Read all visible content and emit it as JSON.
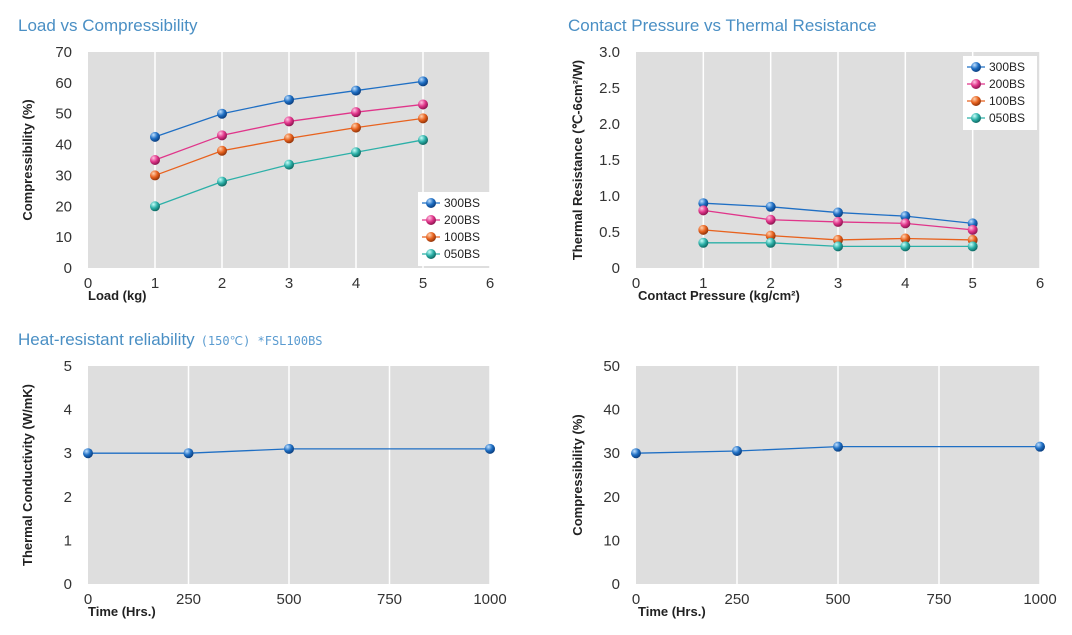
{
  "chart_data": [
    {
      "type": "line",
      "title": "Load vs Compressibility",
      "xlabel": "Load (kg)",
      "ylabel": "Compressibility (%)",
      "x": [
        1,
        2,
        3,
        4,
        5
      ],
      "xlim": [
        0,
        6
      ],
      "ylim": [
        0,
        70
      ],
      "xticks": [
        0,
        1,
        2,
        3,
        4,
        5,
        6
      ],
      "yticks": [
        0,
        10,
        20,
        30,
        40,
        50,
        60,
        70
      ],
      "grid": true,
      "legend": "bottom-right",
      "series": [
        {
          "name": "300BS",
          "color": "#1f6fc4",
          "values": [
            42.5,
            50,
            54.5,
            57.5,
            60.5
          ]
        },
        {
          "name": "200BS",
          "color": "#e0358a",
          "values": [
            35,
            43,
            47.5,
            50.5,
            53
          ]
        },
        {
          "name": "100BS",
          "color": "#e8621e",
          "values": [
            30,
            38,
            42,
            45.5,
            48.5
          ]
        },
        {
          "name": "050BS",
          "color": "#2cb0a8",
          "values": [
            20,
            28,
            33.5,
            37.5,
            41.5
          ]
        }
      ]
    },
    {
      "type": "line",
      "title": "Contact Pressure vs Thermal Resistance",
      "xlabel": "Contact Pressure (kg/cm²)",
      "ylabel": "Thermal Resistance (℃-6cm²/W)",
      "x": [
        1,
        2,
        3,
        4,
        5
      ],
      "xlim": [
        0,
        6
      ],
      "ylim": [
        0,
        3.0
      ],
      "xticks": [
        0,
        1,
        2,
        3,
        4,
        5,
        6
      ],
      "yticks": [
        0,
        0.5,
        1.0,
        1.5,
        2.0,
        2.5,
        3.0
      ],
      "ytick_labels": [
        "0",
        "0.5",
        "1.0",
        "1.5",
        "2.0",
        "2.5",
        "3.0"
      ],
      "grid": true,
      "legend": "top-right",
      "series": [
        {
          "name": "300BS",
          "color": "#1f6fc4",
          "values": [
            0.9,
            0.85,
            0.77,
            0.72,
            0.62
          ]
        },
        {
          "name": "200BS",
          "color": "#e0358a",
          "values": [
            0.8,
            0.67,
            0.64,
            0.62,
            0.53
          ]
        },
        {
          "name": "100BS",
          "color": "#e8621e",
          "values": [
            0.53,
            0.45,
            0.39,
            0.41,
            0.39
          ]
        },
        {
          "name": "050BS",
          "color": "#2cb0a8",
          "values": [
            0.35,
            0.35,
            0.3,
            0.3,
            0.3
          ]
        }
      ]
    },
    {
      "type": "line",
      "title": "Heat-resistant reliability",
      "subtitle": "(150℃) *FSL100BS",
      "xlabel": "Time (Hrs.)",
      "ylabel": "Thermal Conductivity (W/mK)",
      "x": [
        0,
        250,
        500,
        1000
      ],
      "xlim": [
        0,
        1000
      ],
      "ylim": [
        0,
        5
      ],
      "xticks": [
        0,
        250,
        500,
        750,
        1000
      ],
      "yticks": [
        0,
        1,
        2,
        3,
        4,
        5
      ],
      "grid": true,
      "series": [
        {
          "color": "#1f6fc4",
          "values": [
            3.0,
            3.0,
            3.1,
            3.1
          ]
        }
      ]
    },
    {
      "type": "line",
      "title": "",
      "xlabel": "Time (Hrs.)",
      "ylabel": "Compressibility (%)",
      "x": [
        0,
        250,
        500,
        1000
      ],
      "xlim": [
        0,
        1000
      ],
      "ylim": [
        0,
        50
      ],
      "xticks": [
        0,
        250,
        500,
        750,
        1000
      ],
      "yticks": [
        0,
        10,
        20,
        30,
        40,
        50
      ],
      "grid": true,
      "series": [
        {
          "color": "#1f6fc4",
          "values": [
            30,
            30.5,
            31.5,
            31.5
          ]
        }
      ]
    }
  ]
}
